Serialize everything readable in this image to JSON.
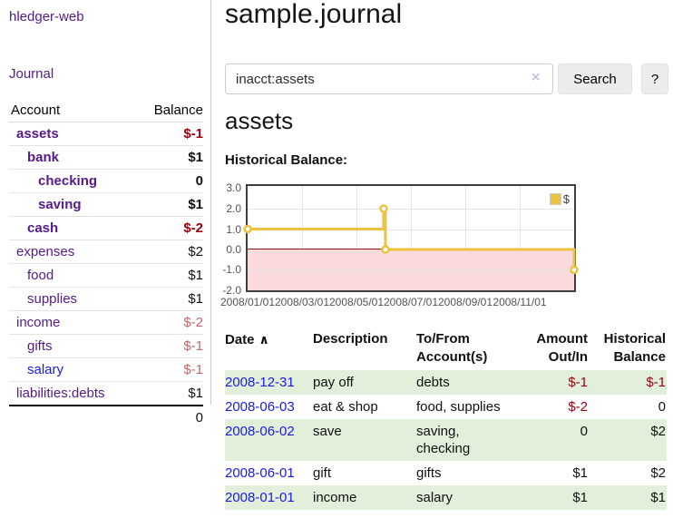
{
  "app": {
    "title": "hledger-web"
  },
  "colors": {
    "link_purple": "#551a8b",
    "link_blue": "#1a1ae6",
    "negative_strong": "#990011",
    "negative_soft": "#c2696e",
    "row_stripe_green": "#e2efda",
    "chart_line": "#edc240",
    "chart_negative_region": "#fadadd",
    "chart_zero_line": "#8b1414"
  },
  "sidebar": {
    "nav": {
      "journal": "Journal"
    },
    "accounts_table": {
      "col_account": "Account",
      "col_balance": "Balance",
      "rows": [
        {
          "name": "assets",
          "balance": "$-1"
        },
        {
          "name": "bank",
          "balance": "$1"
        },
        {
          "name": "checking",
          "balance": "0"
        },
        {
          "name": "saving",
          "balance": "$1"
        },
        {
          "name": "cash",
          "balance": "$-2"
        },
        {
          "name": "expenses",
          "balance": "$2"
        },
        {
          "name": "food",
          "balance": "$1"
        },
        {
          "name": "supplies",
          "balance": "$1"
        },
        {
          "name": "income",
          "balance": "$-2"
        },
        {
          "name": "gifts",
          "balance": "$-1"
        },
        {
          "name": "salary",
          "balance": "$-1"
        },
        {
          "name": "liabilities:debts",
          "balance": "$1"
        }
      ],
      "total": "0"
    }
  },
  "header": {
    "title": "sample.journal"
  },
  "search": {
    "value": "inacct:assets",
    "clear_icon": "×",
    "button": "Search",
    "help_button": "?"
  },
  "main": {
    "account_heading": "assets",
    "chart_label": "Historical Balance:"
  },
  "chart_data": {
    "type": "line",
    "style": "step",
    "title": "Historical Balance",
    "series": [
      {
        "name": "$",
        "points": [
          [
            "2008-01-01",
            1
          ],
          [
            "2008-06-01",
            2
          ],
          [
            "2008-06-03",
            0
          ],
          [
            "2008-12-31",
            -1
          ]
        ]
      }
    ],
    "x_range": [
      "2008-01-01",
      "2008-12-31"
    ],
    "ylim": [
      -2,
      3
    ],
    "yticks": [
      "3.0",
      "2.0",
      "1.0",
      "0.0",
      "-1.0",
      "-2.0"
    ],
    "xticks": [
      "2008/01/01",
      "2008/03/01",
      "2008/05/01",
      "2008/07/01",
      "2008/09/01",
      "2008/11/01"
    ],
    "legend": {
      "position": "top-right"
    },
    "grid": true
  },
  "table": {
    "headers": [
      {
        "line1": "Date",
        "line2": ""
      },
      {
        "line1": "Description",
        "line2": ""
      },
      {
        "line1": "To/From",
        "line2": "Account(s)"
      },
      {
        "line1": "Amount",
        "line2": "Out/In"
      },
      {
        "line1": "Historical",
        "line2": "Balance"
      }
    ],
    "sort_icon": "∧",
    "rows": [
      {
        "date": "2008-12-31",
        "description": "pay off",
        "accounts": "debts",
        "amount": "$-1",
        "balance": "$-1"
      },
      {
        "date": "2008-06-03",
        "description": "eat & shop",
        "accounts": "food, supplies",
        "amount": "$-2",
        "balance": "0"
      },
      {
        "date": "2008-06-02",
        "description": "save",
        "accounts": "saving, checking",
        "amount": "0",
        "balance": "$2"
      },
      {
        "date": "2008-06-01",
        "description": "gift",
        "accounts": "gifts",
        "amount": "$1",
        "balance": "$2"
      },
      {
        "date": "2008-01-01",
        "description": "income",
        "accounts": "salary",
        "amount": "$1",
        "balance": "$1"
      }
    ]
  }
}
